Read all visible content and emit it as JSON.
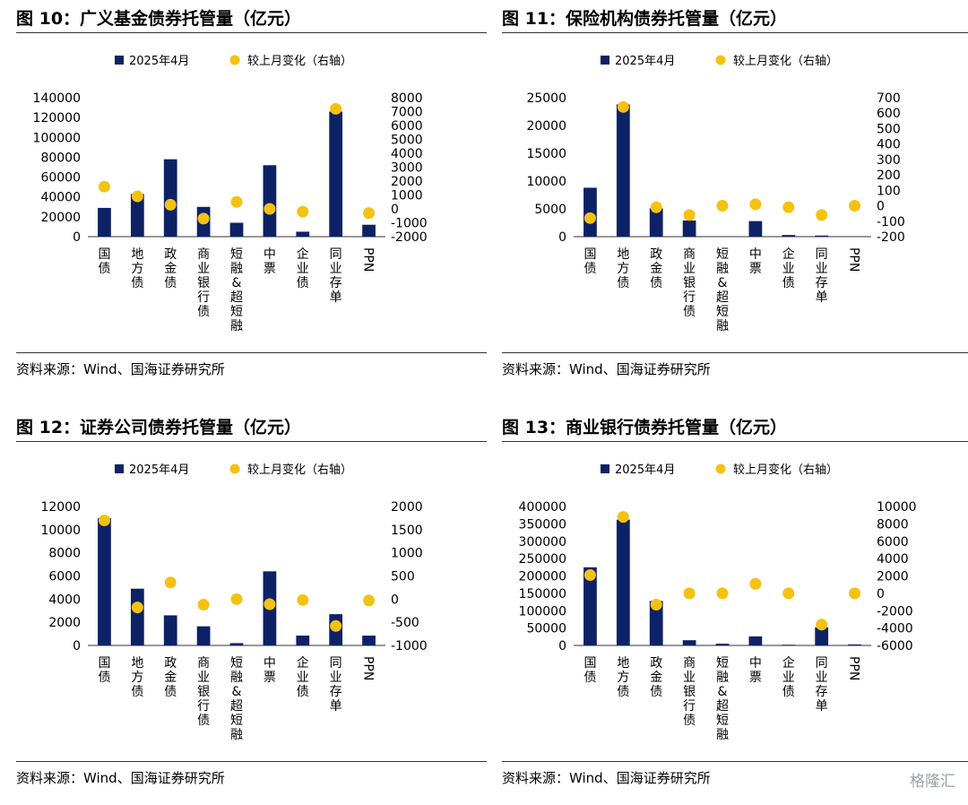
{
  "source_text": "资料来源：Wind、国海证券研究所",
  "watermark": "格隆汇",
  "colors": {
    "bar": "#0d2266",
    "dot": "#f5c211",
    "axis": "#333333"
  },
  "chart_data": [
    {
      "type": "bar",
      "title": "图 10：广义基金债券托管量（亿元）",
      "categories": [
        "国债",
        "地方债",
        "政金债",
        "商业银行债",
        "短融&超短融",
        "中票",
        "企业债",
        "同业存单",
        "PPN"
      ],
      "series": [
        {
          "name": "2025年4月",
          "axis": "left",
          "values": [
            29000,
            43000,
            78000,
            30000,
            14000,
            72000,
            5000,
            126000,
            12000
          ]
        },
        {
          "name": "较上月变化（右轴）",
          "axis": "right",
          "values": [
            1600,
            900,
            300,
            -700,
            500,
            0,
            -200,
            7200,
            -300
          ]
        }
      ],
      "left_ticks": [
        0,
        20000,
        40000,
        60000,
        80000,
        100000,
        120000,
        140000
      ],
      "right_ticks": [
        -2000,
        -1000,
        0,
        1000,
        2000,
        3000,
        4000,
        5000,
        6000,
        7000,
        8000
      ],
      "ylim_left": [
        0,
        140000
      ],
      "ylim_right": [
        -2000,
        8000
      ],
      "legend_position": "top"
    },
    {
      "type": "bar",
      "title": "图 11：保险机构债券托管量（亿元）",
      "categories": [
        "国债",
        "地方债",
        "政金债",
        "商业银行债",
        "短融&超短融",
        "中票",
        "企业债",
        "同业存单",
        "PPN"
      ],
      "series": [
        {
          "name": "2025年4月",
          "axis": "left",
          "values": [
            8800,
            23800,
            5100,
            2900,
            0,
            2800,
            300,
            200,
            0
          ]
        },
        {
          "name": "较上月变化（右轴）",
          "axis": "right",
          "values": [
            -80,
            640,
            -10,
            -60,
            0,
            10,
            -10,
            -60,
            0
          ]
        }
      ],
      "left_ticks": [
        0,
        5000,
        10000,
        15000,
        20000,
        25000
      ],
      "right_ticks": [
        -200,
        -100,
        0,
        100,
        200,
        300,
        400,
        500,
        600,
        700
      ],
      "ylim_left": [
        0,
        25000
      ],
      "ylim_right": [
        -200,
        700
      ],
      "legend_position": "top"
    },
    {
      "type": "bar",
      "title": "图 12：证券公司债券托管量（亿元）",
      "categories": [
        "国债",
        "地方债",
        "政金债",
        "商业银行债",
        "短融&超短融",
        "中票",
        "企业债",
        "同业存单",
        "PPN"
      ],
      "series": [
        {
          "name": "2025年4月",
          "axis": "left",
          "values": [
            11000,
            4900,
            2600,
            1650,
            200,
            6400,
            850,
            2700,
            850
          ]
        },
        {
          "name": "较上月变化（右轴）",
          "axis": "right",
          "values": [
            1700,
            -180,
            360,
            -120,
            0,
            -110,
            -20,
            -580,
            -30
          ]
        }
      ],
      "left_ticks": [
        0,
        2000,
        4000,
        6000,
        8000,
        10000,
        12000
      ],
      "right_ticks": [
        -1000,
        -500,
        0,
        500,
        1000,
        1500,
        2000
      ],
      "ylim_left": [
        0,
        12000
      ],
      "ylim_right": [
        -1000,
        2000
      ],
      "legend_position": "top"
    },
    {
      "type": "bar",
      "title": "图 13：商业银行债券托管量（亿元）",
      "categories": [
        "国债",
        "地方债",
        "政金债",
        "商业银行债",
        "短融&超短融",
        "中票",
        "企业债",
        "同业存单",
        "PPN"
      ],
      "series": [
        {
          "name": "2025年4月",
          "axis": "left",
          "values": [
            225000,
            362000,
            128000,
            15000,
            5000,
            26000,
            2000,
            52000,
            3000
          ]
        },
        {
          "name": "较上月变化（右轴）",
          "axis": "right",
          "values": [
            2100,
            8800,
            -1300,
            0,
            0,
            1100,
            0,
            -3600,
            0
          ]
        }
      ],
      "left_ticks": [
        0,
        50000,
        100000,
        150000,
        200000,
        250000,
        300000,
        350000,
        400000
      ],
      "right_ticks": [
        -6000,
        -4000,
        -2000,
        0,
        2000,
        4000,
        6000,
        8000,
        10000
      ],
      "ylim_left": [
        0,
        400000
      ],
      "ylim_right": [
        -6000,
        10000
      ],
      "legend_position": "top"
    }
  ]
}
